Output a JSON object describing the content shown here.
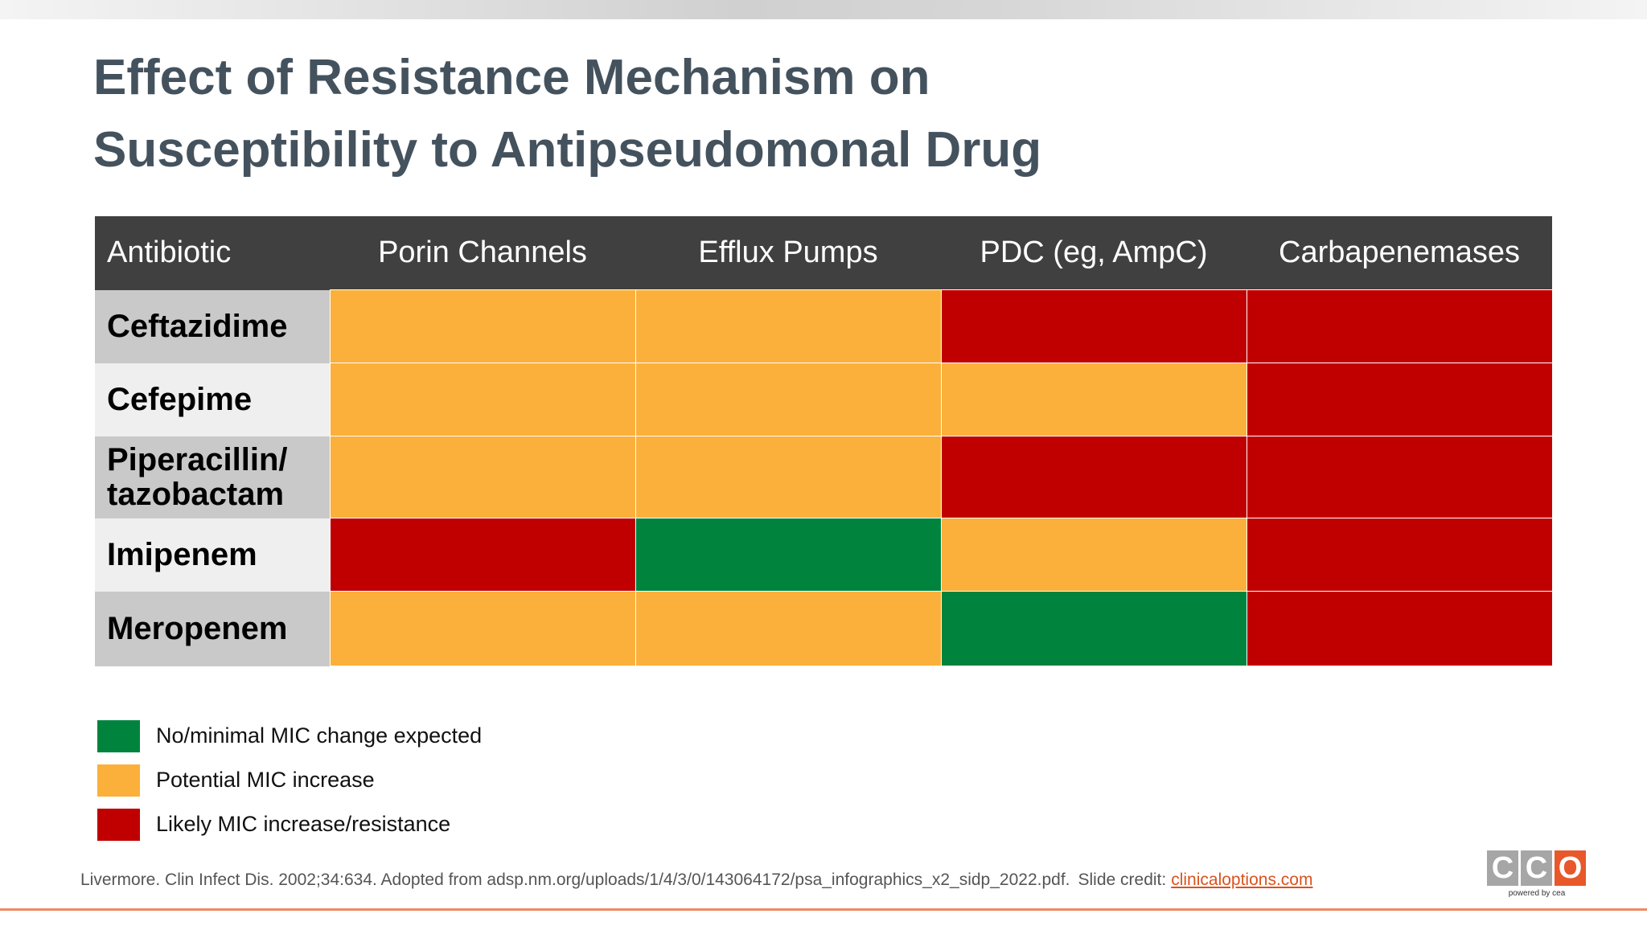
{
  "header": {
    "title_lines": [
      "Effect of Resistance Mechanism on",
      "Susceptibility to Antipseudomonal Drug"
    ]
  },
  "table": {
    "columns": [
      "Antibiotic",
      "Porin Channels",
      "Efflux Pumps",
      "PDC (eg, AmpC)",
      "Carbapenemases"
    ],
    "rows": [
      {
        "label": [
          "Ceftazidime"
        ],
        "levels": [
          1,
          1,
          2,
          2
        ]
      },
      {
        "label": [
          "Cefepime"
        ],
        "levels": [
          1,
          1,
          1,
          2
        ]
      },
      {
        "label": [
          "Piperacillin/",
          "tazobactam"
        ],
        "levels": [
          1,
          1,
          2,
          2
        ]
      },
      {
        "label": [
          "Imipenem"
        ],
        "levels": [
          2,
          0,
          1,
          2
        ]
      },
      {
        "label": [
          "Meropenem"
        ],
        "levels": [
          1,
          1,
          0,
          2
        ]
      }
    ]
  },
  "legend": {
    "items": [
      {
        "label": "No/minimal MIC change expected",
        "color": "#00843d"
      },
      {
        "label": "Potential MIC increase",
        "color": "#fbb03b"
      },
      {
        "label": "Likely MIC increase/resistance",
        "color": "#c00000"
      }
    ]
  },
  "footer": {
    "citation": "Livermore. Clin Infect Dis. 2002;34:634. Adopted from adsp.nm.org/uploads/1/4/3/0/143064172/psa_infographics_x2_sidp_2022.pdf.",
    "credit": "Slide credit:",
    "link": "clinicaloptions.com"
  },
  "logo": {
    "letters": [
      "C",
      "C",
      "O"
    ],
    "tagline": "powered by cea"
  }
}
